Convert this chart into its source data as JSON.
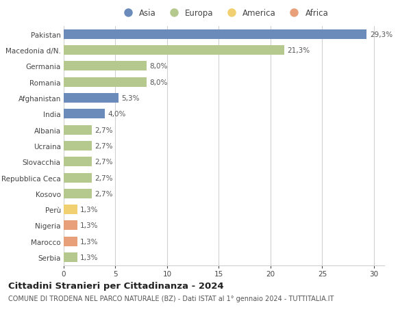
{
  "countries": [
    "Pakistan",
    "Macedonia d/N.",
    "Germania",
    "Romania",
    "Afghanistan",
    "India",
    "Albania",
    "Ucraina",
    "Slovacchia",
    "Repubblica Ceca",
    "Kosovo",
    "Perù",
    "Nigeria",
    "Marocco",
    "Serbia"
  ],
  "values": [
    29.3,
    21.3,
    8.0,
    8.0,
    5.3,
    4.0,
    2.7,
    2.7,
    2.7,
    2.7,
    2.7,
    1.3,
    1.3,
    1.3,
    1.3
  ],
  "labels": [
    "29,3%",
    "21,3%",
    "8,0%",
    "8,0%",
    "5,3%",
    "4,0%",
    "2,7%",
    "2,7%",
    "2,7%",
    "2,7%",
    "2,7%",
    "1,3%",
    "1,3%",
    "1,3%",
    "1,3%"
  ],
  "continents": [
    "Asia",
    "Europa",
    "Europa",
    "Europa",
    "Asia",
    "Asia",
    "Europa",
    "Europa",
    "Europa",
    "Europa",
    "Europa",
    "America",
    "Africa",
    "Africa",
    "Europa"
  ],
  "continent_colors": {
    "Asia": "#6b8cba",
    "Europa": "#b5c98e",
    "America": "#f0d070",
    "Africa": "#e8a07a"
  },
  "legend_order": [
    "Asia",
    "Europa",
    "America",
    "Africa"
  ],
  "xlim": [
    0,
    31
  ],
  "xticks": [
    0,
    5,
    10,
    15,
    20,
    25,
    30
  ],
  "title": "Cittadini Stranieri per Cittadinanza - 2024",
  "subtitle": "COMUNE DI TRODENA NEL PARCO NATURALE (BZ) - Dati ISTAT al 1° gennaio 2024 - TUTTITALIA.IT",
  "bg_color": "#ffffff",
  "grid_color": "#d0d0d0",
  "bar_height": 0.6,
  "title_fontsize": 9.5,
  "subtitle_fontsize": 7.0,
  "tick_fontsize": 7.5,
  "value_fontsize": 7.5,
  "legend_fontsize": 8.5
}
